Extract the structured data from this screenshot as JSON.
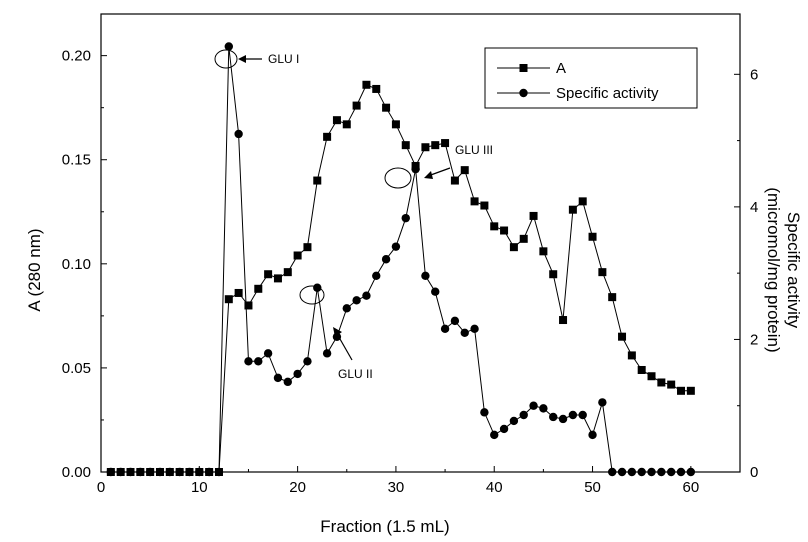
{
  "chart_data": {
    "type": "line",
    "x_axis": {
      "label": "Fraction (1.5 mL)",
      "range": [
        0,
        65
      ],
      "ticks": [
        "0",
        "10",
        "20",
        "30",
        "40",
        "50",
        "60"
      ]
    },
    "y_left_axis": {
      "label": "A (280 nm)",
      "range": [
        0,
        0.22
      ],
      "ticks": [
        "0.00",
        "0.05",
        "0.10",
        "0.15",
        "0.20"
      ]
    },
    "y_right_axis": {
      "label_line1": "Specific activity",
      "label_line2": "(micromol/mg protein)",
      "range": [
        0,
        6.91
      ],
      "ticks": [
        "0",
        "2",
        "4",
        "6"
      ]
    },
    "legend": {
      "position": "top-right",
      "entries": [
        "A",
        "Specific activity"
      ]
    },
    "series": [
      {
        "name": "A",
        "axis": "left",
        "marker": "square",
        "x": [
          1,
          2,
          3,
          4,
          5,
          6,
          7,
          8,
          9,
          10,
          11,
          12,
          13,
          14,
          15,
          16,
          17,
          18,
          19,
          20,
          21,
          22,
          23,
          24,
          25,
          26,
          27,
          28,
          29,
          30,
          31,
          32,
          33,
          34,
          35,
          36,
          37,
          38,
          39,
          40,
          41,
          42,
          43,
          44,
          45,
          46,
          47,
          48,
          49,
          50,
          51,
          52,
          53,
          54,
          55,
          56,
          57,
          58,
          59,
          60
        ],
        "values": [
          0,
          0,
          0,
          0,
          0,
          0,
          0,
          0,
          0,
          0,
          0,
          0,
          0.083,
          0.086,
          0.08,
          0.088,
          0.095,
          0.093,
          0.096,
          0.104,
          0.108,
          0.14,
          0.161,
          0.169,
          0.167,
          0.176,
          0.186,
          0.184,
          0.175,
          0.167,
          0.157,
          0.147,
          0.156,
          0.157,
          0.158,
          0.14,
          0.145,
          0.13,
          0.128,
          0.118,
          0.116,
          0.108,
          0.112,
          0.123,
          0.106,
          0.095,
          0.073,
          0.126,
          0.13,
          0.113,
          0.096,
          0.084,
          0.065,
          0.056,
          0.049,
          0.046,
          0.043,
          0.042,
          0.039,
          0.039
        ]
      },
      {
        "name": "Specific activity",
        "axis": "right",
        "marker": "circle",
        "x": [
          1,
          2,
          3,
          4,
          5,
          6,
          7,
          8,
          9,
          10,
          11,
          12,
          13,
          14,
          15,
          16,
          17,
          18,
          19,
          20,
          21,
          22,
          23,
          24,
          25,
          26,
          27,
          28,
          29,
          30,
          31,
          32,
          33,
          34,
          35,
          36,
          37,
          38,
          39,
          40,
          41,
          42,
          43,
          44,
          45,
          46,
          47,
          48,
          49,
          50,
          51,
          52,
          53,
          54,
          55,
          56,
          57,
          58,
          59,
          60
        ],
        "values": [
          0,
          0,
          0,
          0,
          0,
          0,
          0,
          0,
          0,
          0,
          0,
          0,
          6.42,
          5.1,
          1.67,
          1.67,
          1.79,
          1.42,
          1.36,
          1.48,
          1.67,
          2.78,
          1.79,
          2.04,
          2.47,
          2.59,
          2.66,
          2.96,
          3.21,
          3.4,
          3.83,
          4.57,
          2.96,
          2.72,
          2.16,
          2.28,
          2.1,
          2.16,
          0.9,
          0.56,
          0.65,
          0.77,
          0.86,
          1.0,
          0.96,
          0.83,
          0.8,
          0.86,
          0.86,
          0.56,
          1.05,
          0,
          0,
          0,
          0,
          0,
          0,
          0,
          0,
          0
        ]
      }
    ],
    "annotations": [
      "GLU I",
      "GLU II",
      "GLU III"
    ]
  }
}
